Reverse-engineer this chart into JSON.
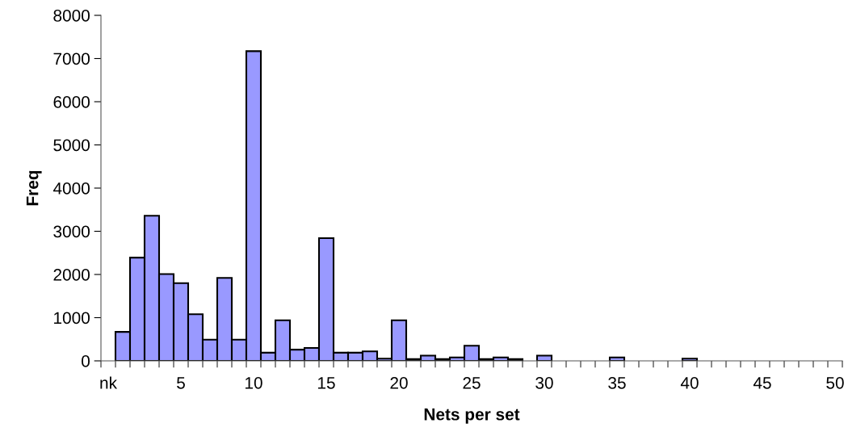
{
  "chart_data": {
    "type": "bar",
    "xlabel": "Nets per set",
    "ylabel": "Freq",
    "categories": [
      "nk",
      null,
      null,
      null,
      null,
      "5",
      null,
      null,
      null,
      null,
      "10",
      null,
      null,
      null,
      null,
      "15",
      null,
      null,
      null,
      null,
      "20",
      null,
      null,
      null,
      null,
      "25",
      null,
      null,
      null,
      null,
      "30",
      null,
      null,
      null,
      null,
      "35",
      null,
      null,
      null,
      null,
      "40",
      null,
      null,
      null,
      null,
      "45",
      null,
      null,
      null,
      null,
      "50"
    ],
    "values": [
      0,
      670,
      2390,
      3360,
      2010,
      1800,
      1080,
      490,
      1920,
      490,
      7170,
      190,
      940,
      260,
      300,
      2840,
      190,
      190,
      220,
      50,
      940,
      40,
      120,
      40,
      80,
      350,
      40,
      80,
      40,
      0,
      120,
      0,
      0,
      0,
      0,
      80,
      0,
      0,
      0,
      0,
      50,
      0,
      0,
      0,
      0,
      0,
      0,
      0,
      0,
      0,
      0
    ],
    "color": "#9999ff",
    "ylim": [
      0,
      8000
    ],
    "yticks": [
      0,
      1000,
      2000,
      3000,
      4000,
      5000,
      6000,
      7000,
      8000
    ],
    "grid": false,
    "legend": false
  }
}
